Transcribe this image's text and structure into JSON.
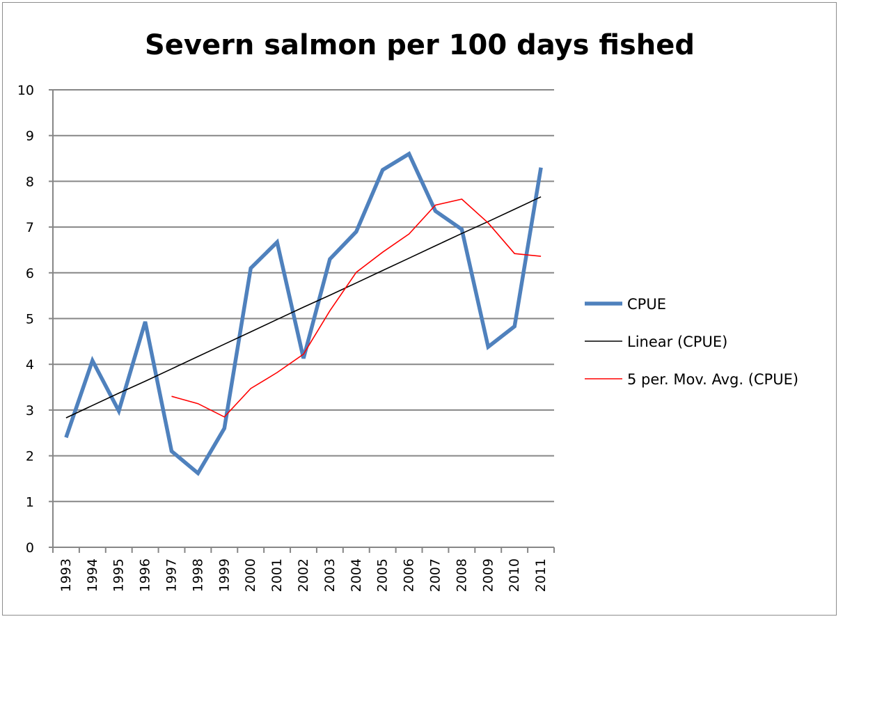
{
  "chart_data": {
    "type": "line",
    "title": "Severn salmon per 100 days fished",
    "xlabel": "",
    "ylabel": "",
    "ylim": [
      0,
      10
    ],
    "yticks": [
      "0",
      "1",
      "2",
      "3",
      "4",
      "5",
      "6",
      "7",
      "8",
      "9",
      "10"
    ],
    "categories": [
      "1993",
      "1994",
      "1995",
      "1996",
      "1997",
      "1998",
      "1999",
      "2000",
      "2001",
      "2002",
      "2003",
      "2004",
      "2005",
      "2006",
      "2007",
      "2008",
      "2009",
      "2010",
      "2011"
    ],
    "grid": "horizontal",
    "legend_position": "right",
    "series": [
      {
        "name": "CPUE",
        "color": "#4f81bd",
        "style": "thick",
        "values": [
          2.4,
          4.08,
          2.98,
          4.93,
          2.1,
          1.62,
          2.6,
          6.1,
          6.67,
          4.13,
          6.3,
          6.9,
          8.25,
          8.6,
          7.35,
          6.95,
          4.38,
          4.83,
          8.3
        ]
      },
      {
        "name": "Linear (CPUE)",
        "color": "#000000",
        "style": "thin",
        "values": [
          2.83,
          3.1,
          3.37,
          3.63,
          3.9,
          4.17,
          4.44,
          4.71,
          4.98,
          5.25,
          5.51,
          5.78,
          6.05,
          6.32,
          6.59,
          6.86,
          7.12,
          7.39,
          7.66
        ]
      },
      {
        "name": "5 per. Mov. Avg. (CPUE)",
        "color": "#ff0000",
        "style": "thin",
        "values": [
          null,
          null,
          null,
          null,
          3.3,
          3.14,
          2.85,
          3.47,
          3.82,
          4.22,
          5.17,
          6.01,
          6.45,
          6.85,
          7.48,
          7.61,
          7.09,
          6.42,
          6.36
        ]
      }
    ]
  }
}
